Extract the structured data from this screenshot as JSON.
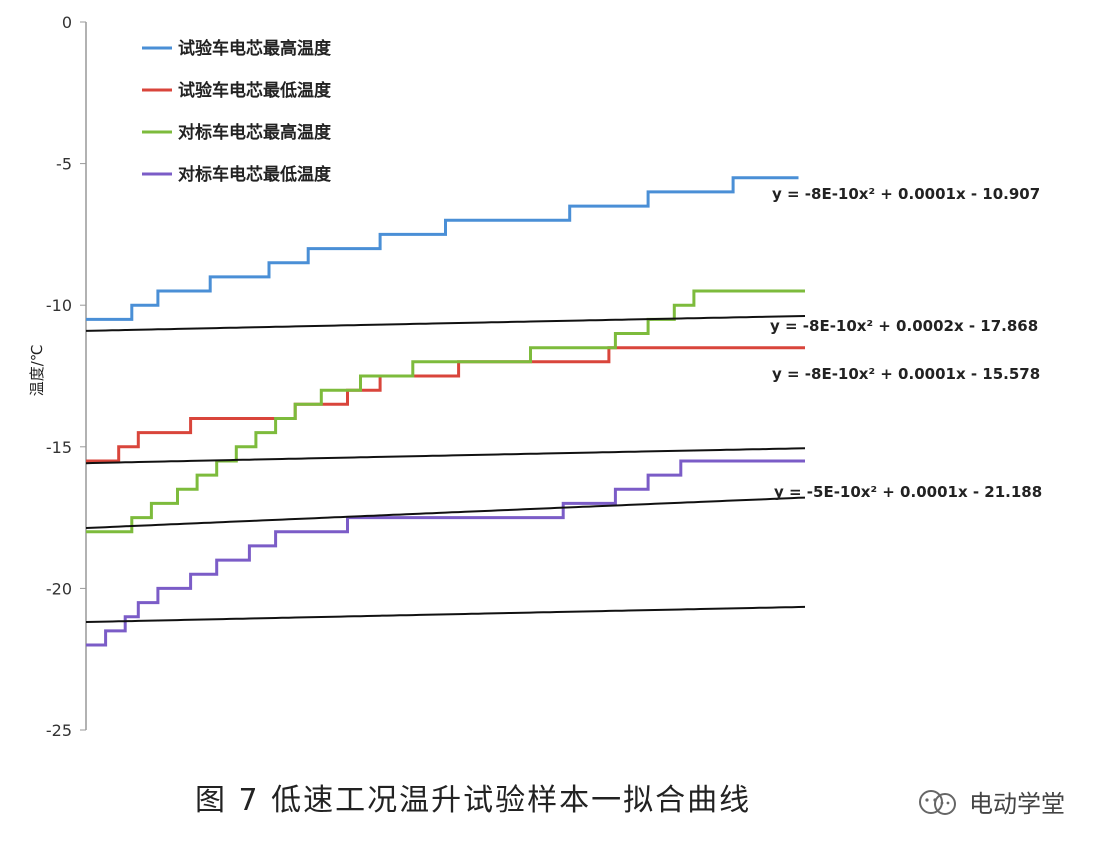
{
  "chart_data": {
    "type": "line",
    "ylabel": "温度/℃",
    "ylim": [
      -25,
      0
    ],
    "yticks": [
      0,
      -5,
      -10,
      -15,
      -20,
      -25
    ],
    "xlim": [
      0,
      5500
    ],
    "legend_position": "top-left",
    "series": [
      {
        "name": "试验车电芯最高温度",
        "color": "#4a8fd6",
        "x": [
          0,
          350,
          350,
          550,
          550,
          950,
          950,
          1400,
          1400,
          1700,
          1700,
          2250,
          2250,
          2750,
          2750,
          3700,
          3700,
          4300,
          4300,
          4950,
          4950,
          5450
        ],
        "y": [
          -10.5,
          -10.5,
          -10,
          -10,
          -9.5,
          -9.5,
          -9,
          -9,
          -8.5,
          -8.5,
          -8,
          -8,
          -7.5,
          -7.5,
          -7,
          -7,
          -6.5,
          -6.5,
          -6,
          -6,
          -5.5,
          -5.5
        ]
      },
      {
        "name": "试验车电芯最低温度",
        "color": "#d9453b",
        "x": [
          0,
          250,
          250,
          400,
          400,
          800,
          800,
          1600,
          1600,
          2000,
          2000,
          2250,
          2250,
          2850,
          2850,
          3200,
          3200,
          4000,
          4000,
          5500
        ],
        "y": [
          -15.5,
          -15.5,
          -15,
          -15,
          -14.5,
          -14.5,
          -14,
          -14,
          -13.5,
          -13.5,
          -13,
          -13,
          -12.5,
          -12.5,
          -12,
          -12,
          -12,
          -12,
          -11.5,
          -11.5
        ]
      },
      {
        "name": "对标车电芯最高温度",
        "color": "#7dbb3c",
        "x": [
          0,
          350,
          350,
          500,
          500,
          700,
          700,
          850,
          850,
          1000,
          1000,
          1150,
          1150,
          1300,
          1300,
          1450,
          1450,
          1600,
          1600,
          1800,
          1800,
          2100,
          2100,
          2500,
          2500,
          3000,
          3000,
          3400,
          3400,
          4050,
          4050,
          4300,
          4300,
          4500,
          4500,
          4650,
          4650,
          4900,
          4900,
          5150,
          5150,
          5500
        ],
        "y": [
          -18,
          -18,
          -17.5,
          -17.5,
          -17,
          -17,
          -16.5,
          -16.5,
          -16,
          -16,
          -15.5,
          -15.5,
          -15,
          -15,
          -14.5,
          -14.5,
          -14,
          -14,
          -13.5,
          -13.5,
          -13,
          -13,
          -12.5,
          -12.5,
          -12,
          -12,
          -12,
          -12,
          -11.5,
          -11.5,
          -11,
          -11,
          -10.5,
          -10.5,
          -10,
          -10,
          -9.5,
          -9.5,
          -9.5,
          -9.5,
          -9.5,
          -9.5
        ]
      },
      {
        "name": "对标车电芯最低温度",
        "color": "#7b5cc7",
        "x": [
          0,
          150,
          150,
          300,
          300,
          400,
          400,
          550,
          550,
          800,
          800,
          1000,
          1000,
          1250,
          1250,
          1450,
          1450,
          1850,
          1850,
          2000,
          2000,
          3650,
          3650,
          4050,
          4050,
          4300,
          4300,
          4550,
          4550,
          4800,
          4800,
          5500
        ],
        "y": [
          -22,
          -22,
          -21.5,
          -21.5,
          -21,
          -21,
          -20.5,
          -20.5,
          -20,
          -20,
          -19.5,
          -19.5,
          -19,
          -19,
          -18.5,
          -18.5,
          -18,
          -18,
          -18,
          -18,
          -17.5,
          -17.5,
          -17,
          -17,
          -16.5,
          -16.5,
          -16,
          -16,
          -15.5,
          -15.5,
          -15.5,
          -15.5
        ]
      }
    ],
    "trendlines": [
      {
        "a": -8e-10,
        "b": 0.0001,
        "c": -10.907,
        "label": "y = -8E-10x² + 0.0001x - 10.907"
      },
      {
        "a": -8e-10,
        "b": 0.0002,
        "c": -17.868,
        "label": "y = -8E-10x² + 0.0002x - 17.868"
      },
      {
        "a": -8e-10,
        "b": 0.0001,
        "c": -15.578,
        "label": "y = -8E-10x² + 0.0001x - 15.578"
      },
      {
        "a": -5e-10,
        "b": 0.0001,
        "c": -21.188,
        "label": "y = -5E-10x² + 0.0001x - 21.188"
      }
    ]
  },
  "caption": "图 7    低速工况温升试验样本一拟合曲线",
  "watermark": "电动学堂"
}
